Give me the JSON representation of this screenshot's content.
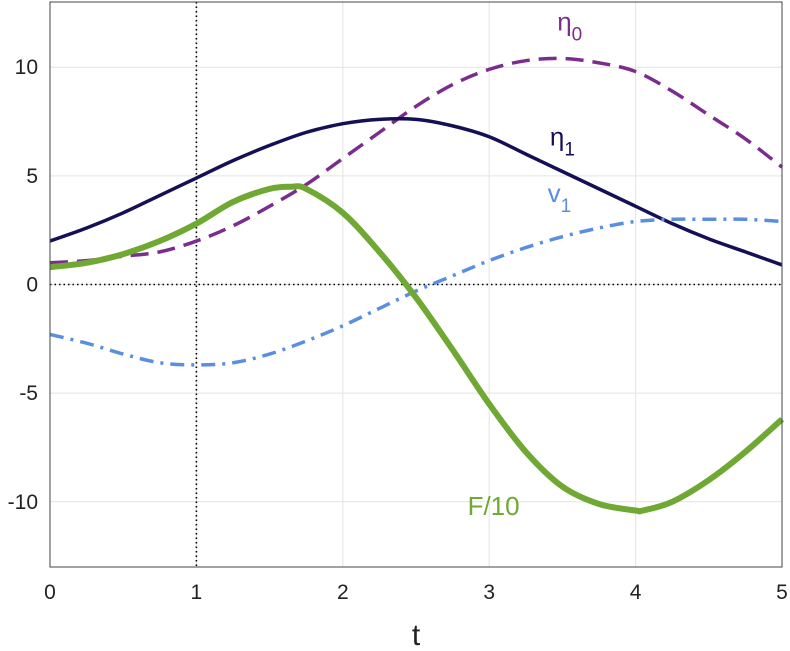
{
  "chart_data": {
    "type": "line",
    "title": "",
    "xlabel": "t",
    "ylabel": "",
    "xlim": [
      0,
      5
    ],
    "ylim": [
      -13,
      13
    ],
    "xticks": [
      0,
      1,
      2,
      3,
      4,
      5
    ],
    "yticks": [
      -10,
      -5,
      0,
      5,
      10
    ],
    "xtick_labels": [
      "0",
      "1",
      "2",
      "3",
      "4",
      "5"
    ],
    "ytick_labels": [
      "-10",
      "-5",
      "0",
      "5",
      "10"
    ],
    "grid": true,
    "reference_lines": [
      {
        "orientation": "vertical",
        "value": 1,
        "style": "dotted",
        "color": "#000000"
      },
      {
        "orientation": "horizontal",
        "value": 0,
        "style": "dotted",
        "color": "#000000"
      }
    ],
    "series": [
      {
        "label_main": "η",
        "label_sub": "0",
        "label_pos": {
          "x": 3.55,
          "y": 11.7
        },
        "color": "#7b2d8e",
        "style": "dashed",
        "width": 3.5,
        "x": [
          0,
          0.25,
          0.5,
          0.75,
          1,
          1.25,
          1.5,
          1.75,
          2,
          2.25,
          2.5,
          2.75,
          3,
          3.25,
          3.5,
          3.75,
          4,
          4.25,
          4.5,
          4.75,
          5
        ],
        "y": [
          1.0,
          1.1,
          1.3,
          1.5,
          2.0,
          2.7,
          3.6,
          4.6,
          5.8,
          7.0,
          8.2,
          9.2,
          9.9,
          10.3,
          10.4,
          10.2,
          9.8,
          8.9,
          7.8,
          6.7,
          5.4
        ]
      },
      {
        "label_main": "η",
        "label_sub": "1",
        "label_pos": {
          "x": 3.5,
          "y": 6.4
        },
        "color": "#151055",
        "style": "solid",
        "width": 3.5,
        "x": [
          0,
          0.25,
          0.5,
          0.75,
          1,
          1.25,
          1.5,
          1.75,
          2,
          2.25,
          2.5,
          2.75,
          3,
          3.25,
          3.5,
          3.75,
          4,
          4.25,
          4.5,
          4.75,
          5
        ],
        "y": [
          2.0,
          2.6,
          3.3,
          4.1,
          4.9,
          5.7,
          6.4,
          7.0,
          7.4,
          7.6,
          7.6,
          7.3,
          6.8,
          6.0,
          5.2,
          4.4,
          3.6,
          2.8,
          2.1,
          1.5,
          0.9
        ]
      },
      {
        "label_main": "v",
        "label_sub": "1",
        "label_pos": {
          "x": 3.48,
          "y": 3.8
        },
        "color": "#5a8fe0",
        "style": "dashdot",
        "width": 3.5,
        "x": [
          0,
          0.25,
          0.5,
          0.75,
          1,
          1.25,
          1.5,
          1.75,
          2,
          2.25,
          2.5,
          2.75,
          3,
          3.25,
          3.5,
          3.75,
          4,
          4.25,
          4.5,
          4.75,
          5
        ],
        "y": [
          -2.3,
          -2.7,
          -3.2,
          -3.6,
          -3.7,
          -3.6,
          -3.2,
          -2.6,
          -1.9,
          -1.1,
          -0.3,
          0.4,
          1.1,
          1.7,
          2.2,
          2.6,
          2.9,
          3.0,
          3.0,
          3.0,
          2.9
        ]
      },
      {
        "label_main": "F/10",
        "label_sub": "",
        "label_pos": {
          "x": 3.03,
          "y": -10.6
        },
        "color": "#6fa832",
        "style": "solid",
        "width": 6,
        "x": [
          0,
          0.25,
          0.5,
          0.75,
          1,
          1.25,
          1.5,
          1.65,
          1.75,
          2,
          2.25,
          2.5,
          2.75,
          3,
          3.25,
          3.5,
          3.75,
          4,
          4.05,
          4.25,
          4.5,
          4.75,
          5
        ],
        "y": [
          0.8,
          1.0,
          1.4,
          2.0,
          2.8,
          3.8,
          4.4,
          4.5,
          4.4,
          3.3,
          1.5,
          -0.6,
          -3.0,
          -5.5,
          -7.7,
          -9.3,
          -10.1,
          -10.4,
          -10.4,
          -10.0,
          -9.0,
          -7.7,
          -6.2
        ]
      }
    ]
  }
}
